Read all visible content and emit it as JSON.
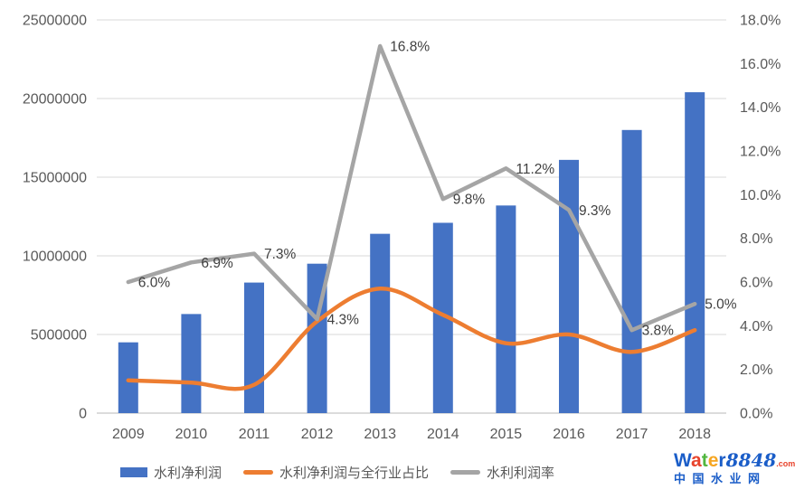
{
  "chart_data": {
    "type": "bar",
    "subtype": "combo-bar-line",
    "title": "",
    "xlabel": "",
    "ylabel": "",
    "grid": true,
    "legend_position": "bottom",
    "categories": [
      "2009",
      "2010",
      "2011",
      "2012",
      "2013",
      "2014",
      "2015",
      "2016",
      "2017",
      "2018"
    ],
    "series": [
      {
        "name": "水利净利润",
        "type": "bar",
        "axis": "left",
        "color": "#4472C4",
        "values": [
          4500000,
          6300000,
          8300000,
          9500000,
          11400000,
          12100000,
          13200000,
          16100000,
          18000000,
          20400000
        ]
      },
      {
        "name": "水利净利润与全行业占比",
        "type": "line",
        "smooth": true,
        "axis": "right",
        "color": "#ED7D31",
        "values": [
          1.5,
          1.4,
          1.3,
          4.2,
          5.7,
          4.5,
          3.2,
          3.6,
          2.8,
          3.8
        ]
      },
      {
        "name": "水利利润率",
        "type": "line",
        "smooth": false,
        "axis": "right",
        "color": "#A5A5A5",
        "values": [
          6.0,
          6.9,
          7.3,
          4.3,
          16.8,
          9.8,
          11.2,
          9.3,
          3.8,
          5.0
        ],
        "data_labels": [
          "6.0%",
          "6.9%",
          "7.3%",
          "4.3%",
          "16.8%",
          "9.8%",
          "11.2%",
          "9.3%",
          "3.8%",
          "5.0%"
        ]
      }
    ],
    "left_axis": {
      "min": 0,
      "max": 25000000,
      "step": 5000000,
      "ticks": [
        "25000000",
        "20000000",
        "15000000",
        "10000000",
        "5000000",
        "0"
      ]
    },
    "right_axis": {
      "min": 0,
      "max": 18,
      "step": 2,
      "ticks": [
        "18.0%",
        "16.0%",
        "14.0%",
        "12.0%",
        "10.0%",
        "8.0%",
        "6.0%",
        "4.0%",
        "2.0%",
        "0.0%"
      ]
    },
    "style": {
      "grid_color": "#D9D9D9",
      "axis_line_color": "#C6C6C6",
      "tick_label_color": "#595959",
      "data_label_color": "#404040"
    }
  },
  "watermark": {
    "word": "Water",
    "letter_colors": [
      "#1a5dc8",
      "#e8432c",
      "#50b63e",
      "#f6a621",
      "#1a5dc8"
    ],
    "number": "8848",
    "number_color": "#1a5dc8",
    "tld": ".com",
    "tld_color": "#e8432c",
    "subtitle": "中国水业网",
    "subtitle_color": "#1a5dc8"
  }
}
